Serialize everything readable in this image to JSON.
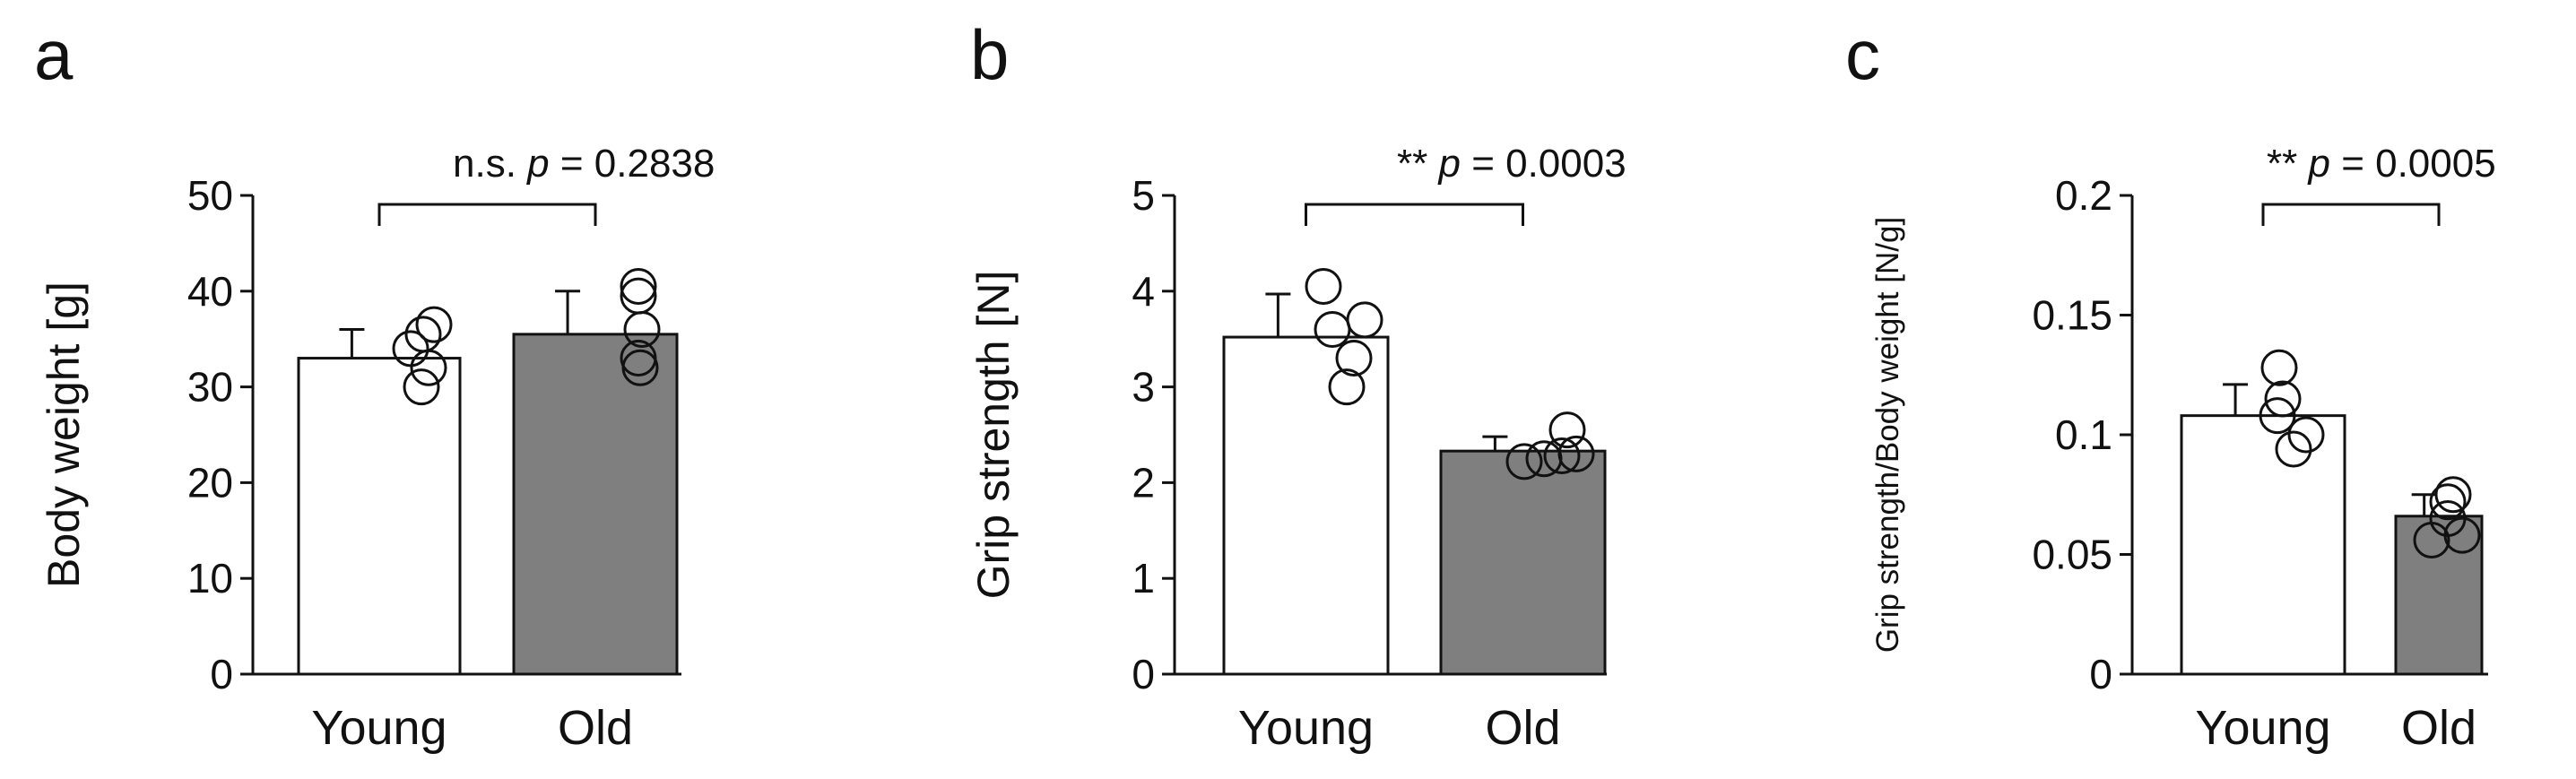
{
  "chart_data": [
    {
      "panel": "a",
      "type": "bar",
      "categories": [
        "Young",
        "Old"
      ],
      "values": [
        33.0,
        35.5
      ],
      "errors": [
        3.0,
        4.5
      ],
      "points": [
        [
          30,
          32,
          34,
          35.5,
          36.5
        ],
        [
          32,
          33,
          36,
          39.5,
          40.5
        ]
      ],
      "ylabel": "Body weight [g]",
      "ylim": [
        0,
        50
      ],
      "yticks": [
        "0",
        "10",
        "20",
        "30",
        "40",
        "50"
      ],
      "bar_colors": [
        "#ffffff",
        "#7f7f7f"
      ],
      "annotation": {
        "prefix": "n.s. ",
        "p_label": "p",
        "rest": " = 0.2838"
      }
    },
    {
      "panel": "b",
      "type": "bar",
      "categories": [
        "Young",
        "Old"
      ],
      "values": [
        3.52,
        2.33
      ],
      "errors": [
        0.45,
        0.15
      ],
      "points": [
        [
          3.0,
          3.3,
          3.6,
          3.7,
          4.05
        ],
        [
          2.22,
          2.25,
          2.28,
          2.3,
          2.55
        ]
      ],
      "ylabel": "Grip strength [N]",
      "ylim": [
        0,
        5
      ],
      "yticks": [
        "0",
        "1",
        "2",
        "3",
        "4",
        "5"
      ],
      "bar_colors": [
        "#ffffff",
        "#7f7f7f"
      ],
      "annotation": {
        "prefix": "** ",
        "p_label": "p",
        "rest": " = 0.0003"
      }
    },
    {
      "panel": "c",
      "type": "bar",
      "categories": [
        "Young",
        "Old"
      ],
      "values": [
        0.108,
        0.066
      ],
      "errors": [
        0.013,
        0.009
      ],
      "points": [
        [
          0.094,
          0.1,
          0.108,
          0.115,
          0.128
        ],
        [
          0.056,
          0.058,
          0.065,
          0.072,
          0.075
        ]
      ],
      "ylabel": "Grip strength/Body weight  [N/g]",
      "ylim": [
        0,
        0.2
      ],
      "yticks": [
        "0",
        "0.05",
        "0.1",
        "0.15",
        "0.2"
      ],
      "bar_colors": [
        "#ffffff",
        "#7f7f7f"
      ],
      "annotation": {
        "prefix": "** ",
        "p_label": "p",
        "rest": " = 0.0005"
      }
    }
  ]
}
